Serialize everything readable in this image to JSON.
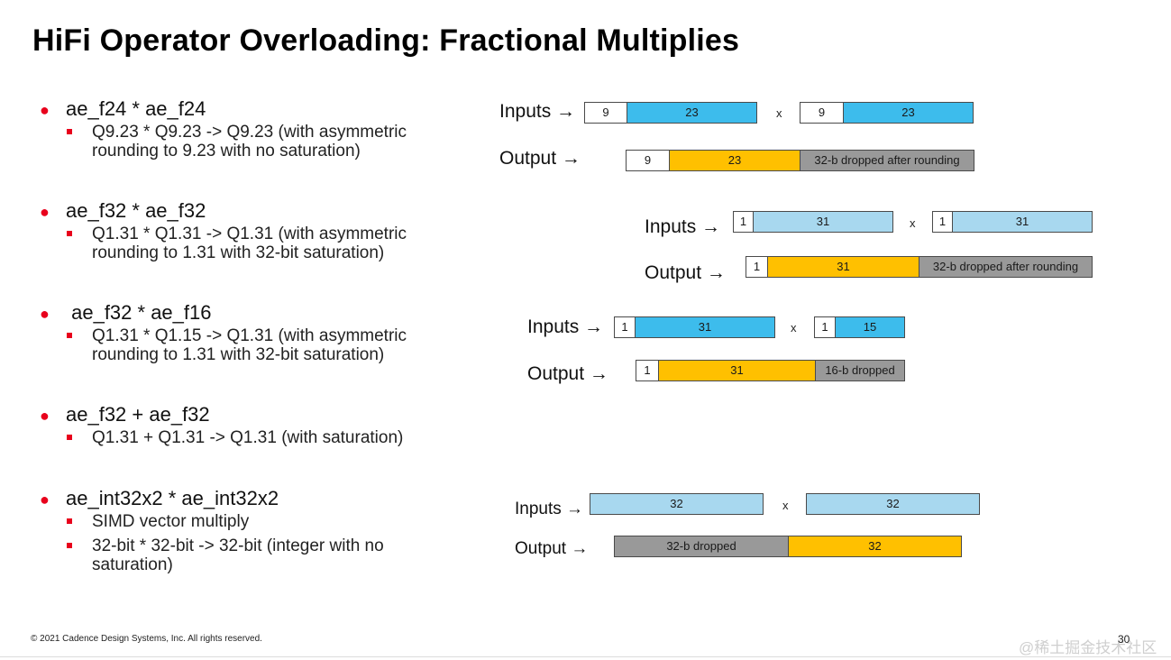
{
  "title": "HiFi Operator Overloading: Fractional Multiplies",
  "bullets": [
    {
      "head": "ae_f24 * ae_f24",
      "subs": [
        "Q9.23 * Q9.23 -> Q9.23 (with asymmetric",
        "rounding to 9.23 with no saturation)"
      ]
    },
    {
      "head": "ae_f32 * ae_f32",
      "subs": [
        "Q1.31 * Q1.31 -> Q1.31 (with asymmetric",
        "rounding to 1.31 with 32-bit saturation)"
      ]
    },
    {
      "head": " ae_f32 * ae_f16",
      "subs": [
        "Q1.31 * Q1.15 -> Q1.31 (with asymmetric",
        "rounding to 1.31 with 32-bit saturation)"
      ]
    },
    {
      "head": "ae_f32 + ae_f32",
      "subs": [
        "Q1.31 + Q1.31 -> Q1.31 (with saturation)"
      ]
    },
    {
      "head": "ae_int32x2 * ae_int32x2",
      "subs": [
        "SIMD vector multiply",
        "32-bit * 32-bit -> 32-bit (integer with no",
        "saturation)"
      ]
    }
  ],
  "labels": {
    "inputs": "Inputs →",
    "output": "Output →",
    "times": "x"
  },
  "diagrams": {
    "d1": {
      "in_a": [
        "9",
        "23"
      ],
      "in_b": [
        "9",
        "23"
      ],
      "out": [
        "9",
        "23",
        "32-b dropped after rounding"
      ]
    },
    "d2": {
      "in_a": [
        "1",
        "31"
      ],
      "in_b": [
        "1",
        "31"
      ],
      "out": [
        "1",
        "31",
        "32-b dropped after rounding"
      ]
    },
    "d3": {
      "in_a": [
        "1",
        "31"
      ],
      "in_b": [
        "1",
        "15"
      ],
      "out": [
        "1",
        "31",
        "16-b dropped"
      ]
    },
    "d5": {
      "in_a": [
        "32"
      ],
      "in_b": [
        "32"
      ],
      "out": [
        "32-b dropped",
        "32"
      ]
    }
  },
  "footer": "© 2021 Cadence Design Systems, Inc. All rights reserved.",
  "page_number": "30",
  "watermark": "@稀土掘金技术社区",
  "colors": {
    "red": "#e8001c",
    "blue": "#3dbcec",
    "light_blue": "#a8d8ef",
    "orange": "#ffc000",
    "gray": "#999999"
  }
}
